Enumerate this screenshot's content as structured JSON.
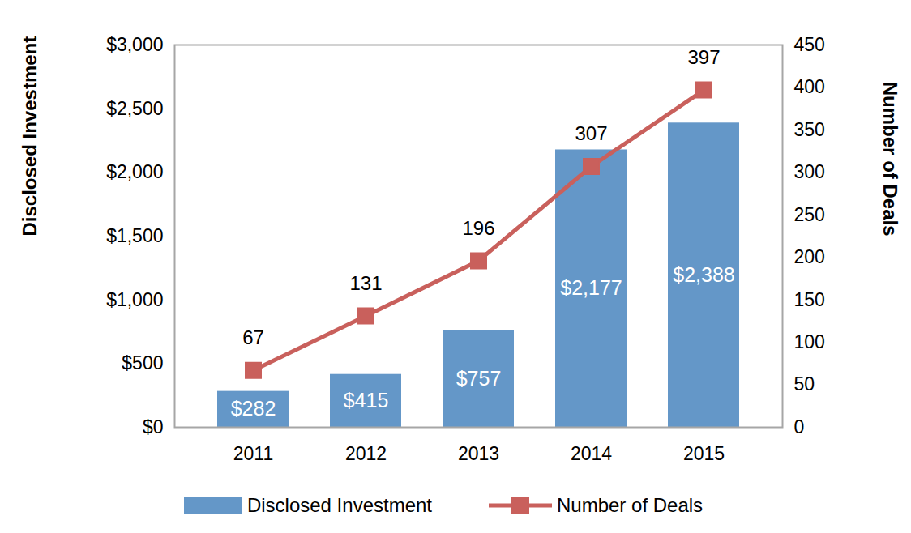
{
  "chart_data": {
    "type": "bar",
    "categories": [
      "2011",
      "2012",
      "2013",
      "2014",
      "2015"
    ],
    "ylabel": "Disclosed Investment",
    "y2label": "Number of Deals",
    "ylim": [
      0,
      3000
    ],
    "yticks": [
      {
        "value": 0,
        "label": "$0"
      },
      {
        "value": 500,
        "label": "$500"
      },
      {
        "value": 1000,
        "label": "$1,000"
      },
      {
        "value": 1500,
        "label": "$1,500"
      },
      {
        "value": 2000,
        "label": "$2,000"
      },
      {
        "value": 2500,
        "label": "$2,500"
      },
      {
        "value": 3000,
        "label": "$3,000"
      }
    ],
    "y2lim": [
      0,
      450
    ],
    "y2ticks": [
      0,
      50,
      100,
      150,
      200,
      250,
      300,
      350,
      400,
      450
    ],
    "data_labels": true,
    "legend": "bottom",
    "series": [
      {
        "name": "Disclosed Investment",
        "type": "bar",
        "color": "#6497c8",
        "values": [
          282,
          415,
          757,
          2177,
          2388
        ],
        "value_labels": [
          "$282",
          "$415",
          "$757",
          "$2,177",
          "$2,388"
        ]
      },
      {
        "name": "Number of Deals",
        "type": "line",
        "axis": "y2",
        "color": "#c9605c",
        "marker": "square",
        "values": [
          67,
          131,
          196,
          307,
          397
        ]
      }
    ]
  }
}
